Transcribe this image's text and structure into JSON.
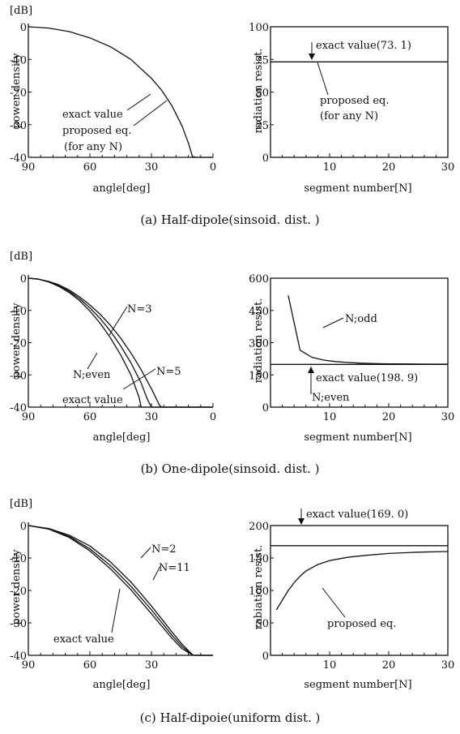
{
  "chart_data": [
    {
      "id": "a-left",
      "type": "line",
      "unit_label": "[dB]",
      "xlabel": "angle[deg]",
      "ylabel": "power density",
      "xlim": [
        90,
        0
      ],
      "ylim": [
        -40,
        0
      ],
      "xticks": [
        90,
        60,
        30,
        0
      ],
      "xtick_labels": [
        "90",
        "60",
        "30",
        "0"
      ],
      "yticks": [
        0,
        -10,
        -20,
        -30,
        -40
      ],
      "ytick_labels": [
        "0",
        "-10",
        "-20",
        "-30",
        "-40"
      ],
      "series": [
        {
          "x": [
            90,
            80,
            70,
            60,
            50,
            40,
            30,
            25,
            20,
            15,
            12,
            10,
            8,
            5,
            0
          ],
          "y": [
            0,
            -0.4,
            -1.5,
            -3.4,
            -6.1,
            -10,
            -15.8,
            -19.5,
            -24.2,
            -30.5,
            -35.6,
            -39.8,
            -40,
            -40,
            -40
          ]
        }
      ],
      "annotations": [
        {
          "text": "exact value",
          "at": [
            31,
            -14.5
          ]
        },
        {
          "text": "proposed eq.",
          "at": [
            25,
            -21
          ]
        },
        {
          "text": "(for any N)",
          "at": null
        }
      ]
    },
    {
      "id": "a-right",
      "type": "line",
      "xlabel": "segment number[N]",
      "ylabel": "radiation resist.",
      "xlim": [
        0,
        30
      ],
      "ylim": [
        0,
        100
      ],
      "xticks": [
        10,
        20,
        30
      ],
      "xtick_labels": [
        "10",
        "20",
        "30"
      ],
      "yticks": [
        0,
        25,
        50,
        75,
        100
      ],
      "ytick_labels": [
        "0",
        "25",
        "50",
        "75",
        "100"
      ],
      "series": [
        {
          "x": [
            0,
            30
          ],
          "y": [
            73.1,
            73.1
          ]
        }
      ],
      "annotations": [
        {
          "text": "exact value(73. 1)",
          "at": [
            3,
            73.1
          ]
        },
        {
          "text": "proposed eq.",
          "at": [
            7,
            73.1
          ]
        },
        {
          "text": "(for any N)",
          "at": null
        }
      ]
    },
    {
      "id": "b-left",
      "type": "line",
      "unit_label": "[dB]",
      "xlabel": "angle[deg]",
      "ylabel": "power density",
      "xlim": [
        90,
        0
      ],
      "ylim": [
        -40,
        0
      ],
      "xticks": [
        90,
        60,
        30,
        0
      ],
      "xtick_labels": [
        "90",
        "60",
        "30",
        "0"
      ],
      "yticks": [
        0,
        -10,
        -20,
        -30,
        -40
      ],
      "ytick_labels": [
        "0",
        "-10",
        "-20",
        "-30",
        "-40"
      ],
      "series": [
        {
          "x": [
            90,
            85,
            80,
            75,
            70,
            65,
            60,
            55,
            50,
            45,
            40,
            36,
            35,
            30,
            0
          ],
          "y": [
            0,
            -0.3,
            -1.2,
            -2.6,
            -4.5,
            -7,
            -10.2,
            -14,
            -18.5,
            -23.8,
            -30,
            -37,
            -40,
            -40,
            -40
          ]
        },
        {
          "x": [
            90,
            85,
            80,
            75,
            70,
            65,
            60,
            55,
            50,
            45,
            40,
            35,
            32,
            30,
            0
          ],
          "y": [
            0,
            -0.3,
            -1.1,
            -2.3,
            -4.1,
            -6.4,
            -9.2,
            -12.5,
            -16.4,
            -21,
            -26.3,
            -32.5,
            -37.5,
            -40,
            -40
          ]
        },
        {
          "x": [
            90,
            85,
            80,
            75,
            70,
            65,
            60,
            55,
            50,
            45,
            40,
            35,
            30,
            26,
            25,
            0
          ],
          "y": [
            0,
            -0.3,
            -1,
            -2.1,
            -3.7,
            -5.8,
            -8.3,
            -11.2,
            -14.6,
            -18.6,
            -23.2,
            -28.4,
            -34.3,
            -39.5,
            -40,
            -40
          ]
        }
      ],
      "annotations": [
        {
          "text": "N=3",
          "at": [
            50,
            -14.5
          ]
        },
        {
          "text": "N=5",
          "at": [
            38,
            -28
          ]
        },
        {
          "text": "N;even",
          "at": [
            54,
            -14
          ]
        },
        {
          "text": "exact value",
          "at": [
            34,
            -40
          ]
        }
      ]
    },
    {
      "id": "b-right",
      "type": "line",
      "xlabel": "segment number[N]",
      "ylabel": "radiation resist.",
      "xlim": [
        0,
        30
      ],
      "ylim": [
        0,
        600
      ],
      "xticks": [
        10,
        20,
        30
      ],
      "xtick_labels": [
        "10",
        "20",
        "30"
      ],
      "yticks": [
        0,
        150,
        300,
        450,
        600
      ],
      "ytick_labels": [
        "0",
        "150",
        "300",
        "450",
        "600"
      ],
      "series": [
        {
          "x": [
            3,
            5,
            7,
            9,
            11,
            13,
            15,
            17,
            19,
            21,
            25,
            30
          ],
          "y": [
            520,
            265,
            232,
            219,
            212,
            208,
            205,
            203,
            202,
            201.5,
            200.5,
            200
          ]
        },
        {
          "x": [
            0,
            30
          ],
          "y": [
            198.9,
            198.9
          ]
        }
      ],
      "annotations": [
        {
          "text": "N;odd",
          "at": [
            5,
            265
          ]
        },
        {
          "text": "exact value(198. 9)",
          "at": [
            4,
            198.9
          ]
        },
        {
          "text": "N;even",
          "at": null
        }
      ]
    },
    {
      "id": "c-left",
      "type": "line",
      "unit_label": "[dB]",
      "xlabel": "angle[deg]",
      "ylabel": "power density",
      "xlim": [
        90,
        0
      ],
      "ylim": [
        -40,
        0
      ],
      "xticks": [
        90,
        60,
        30
      ],
      "xtick_labels": [
        "90",
        "60",
        "30"
      ],
      "yticks": [
        0,
        -10,
        -20,
        -30,
        -40
      ],
      "ytick_labels": [
        "0",
        "-10",
        "-20",
        "-30",
        "-40"
      ],
      "series": [
        {
          "x": [
            90,
            80,
            70,
            60,
            50,
            40,
            30,
            25,
            20,
            15,
            10,
            9,
            0
          ],
          "y": [
            0,
            -0.9,
            -3,
            -6.3,
            -11.2,
            -17.4,
            -24.8,
            -28.8,
            -32.8,
            -36.6,
            -39.8,
            -40,
            -40
          ]
        },
        {
          "x": [
            90,
            80,
            70,
            60,
            50,
            40,
            30,
            25,
            20,
            15,
            10,
            9,
            0
          ],
          "y": [
            0,
            -1,
            -3.4,
            -7.2,
            -12.3,
            -18.7,
            -26,
            -29.9,
            -33.8,
            -37.3,
            -39.9,
            -40,
            -40
          ]
        },
        {
          "x": [
            90,
            80,
            70,
            60,
            50,
            40,
            30,
            25,
            20,
            15,
            10,
            9,
            0
          ],
          "y": [
            0,
            -1.1,
            -3.7,
            -7.8,
            -13.3,
            -19.8,
            -27.2,
            -31,
            -34.7,
            -38,
            -39.9,
            -40,
            -40
          ]
        }
      ],
      "annotations": [
        {
          "text": "N=2",
          "at": [
            38,
            -17
          ]
        },
        {
          "text": "N=11",
          "at": [
            29,
            -23
          ]
        },
        {
          "text": "exact value",
          "at": [
            45,
            -14
          ]
        }
      ]
    },
    {
      "id": "c-right",
      "type": "line",
      "xlabel": "segment number[N]",
      "ylabel": "rabiation resist.",
      "xlim": [
        0,
        30
      ],
      "ylim": [
        0,
        200
      ],
      "xticks": [
        10,
        20,
        30
      ],
      "xtick_labels": [
        "10",
        "20",
        "30"
      ],
      "yticks": [
        0,
        50,
        100,
        150,
        200
      ],
      "ytick_labels": [
        "0",
        "50",
        "100",
        "150",
        "200"
      ],
      "series": [
        {
          "x": [
            1,
            2,
            3,
            4,
            5,
            6,
            8,
            10,
            13,
            16,
            20,
            25,
            30
          ],
          "y": [
            70,
            85,
            100,
            112,
            122,
            130,
            140,
            146,
            151,
            154,
            157,
            159,
            160
          ]
        },
        {
          "x": [
            0,
            30
          ],
          "y": [
            169.0,
            169.0
          ]
        }
      ],
      "annotations": [
        {
          "text": "exact value(169. 0)",
          "at": [
            2,
            169
          ]
        },
        {
          "text": "proposed eq.",
          "at": [
            5,
            122
          ]
        }
      ]
    }
  ],
  "captions": [
    "(a)  Half-dipole(sinsoid. dist. )",
    "(b)  One-dipole(sinsoid. dist. )",
    "(c)  Half-dipoie(uniform dist. )"
  ]
}
